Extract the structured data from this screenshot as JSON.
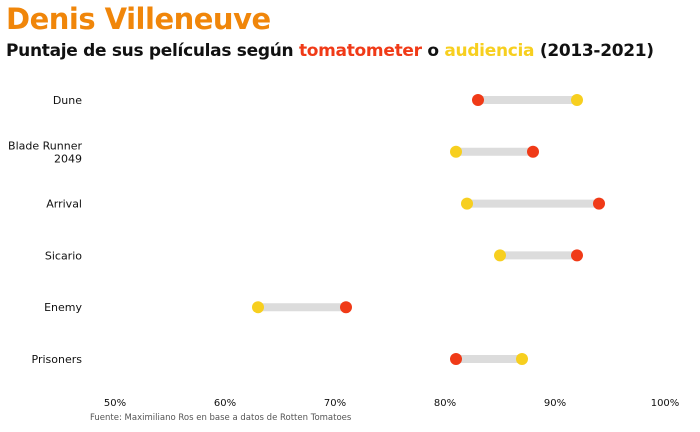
{
  "title": "Denis Villeneuve",
  "subtitle": {
    "part1": "Puntaje de sus películas según ",
    "tomatometer": "tomatometer",
    "connector": " o ",
    "audiencia": "audiencia",
    "part2": " (2013-2021)"
  },
  "caption": "Fuente: Maximiliano Ros en base a datos de Rotten Tomatoes",
  "colors": {
    "title": "#f0860a",
    "tomatometer": "#f03a17",
    "audiencia": "#f7cf1f",
    "segment": "#dcdcdc"
  },
  "chart_data": {
    "type": "dumbbell",
    "categories": [
      "Dune",
      "Blade Runner 2049",
      "Arrival",
      "Sicario",
      "Enemy",
      "Prisoners"
    ],
    "category_lines": [
      [
        "Dune"
      ],
      [
        "Blade Runner",
        "2049"
      ],
      [
        "Arrival"
      ],
      [
        "Sicario"
      ],
      [
        "Enemy"
      ],
      [
        "Prisoners"
      ]
    ],
    "series": [
      {
        "name": "tomatometer",
        "values": [
          83,
          88,
          94,
          92,
          71,
          81
        ]
      },
      {
        "name": "audiencia",
        "values": [
          92,
          81,
          82,
          85,
          63,
          87
        ]
      }
    ],
    "x_ticks": [
      50,
      60,
      70,
      80,
      90,
      100
    ],
    "x_tick_labels": [
      "50%",
      "60%",
      "70%",
      "80%",
      "90%",
      "100%"
    ],
    "xlim": [
      50,
      100
    ],
    "grid": false
  }
}
